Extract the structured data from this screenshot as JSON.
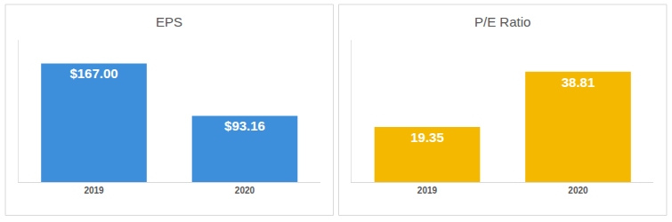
{
  "chart_data": [
    {
      "type": "bar",
      "title": "EPS",
      "categories": [
        "2019",
        "2020"
      ],
      "values": [
        167.0,
        93.16
      ],
      "value_labels": [
        "$167.00",
        "$93.16"
      ],
      "color": "#3d8fdc",
      "ylim": [
        0,
        200
      ],
      "data_labels": true,
      "tick_labels": "x",
      "grid": false
    },
    {
      "type": "bar",
      "title": "P/E Ratio",
      "categories": [
        "2019",
        "2020"
      ],
      "values": [
        19.35,
        38.81
      ],
      "color": "#f5b800",
      "ylim": [
        0,
        50
      ],
      "data_labels": true,
      "tick_labels": "x",
      "grid": false
    }
  ]
}
